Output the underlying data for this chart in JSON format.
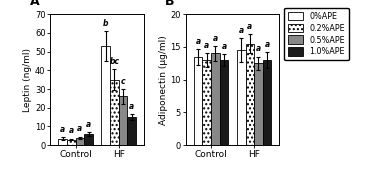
{
  "panel_A": {
    "title": "A",
    "ylabel": "Leptin (ng/ml)",
    "ylim": [
      0,
      70
    ],
    "yticks": [
      0,
      10,
      20,
      30,
      40,
      50,
      60,
      70
    ],
    "groups": [
      "Control",
      "HF"
    ],
    "bars": {
      "0%APE": [
        3.5,
        53.0
      ],
      "0.2%APE": [
        3.0,
        35.0
      ],
      "0.5%APE": [
        4.0,
        26.0
      ],
      "1.0%APE": [
        6.0,
        15.0
      ]
    },
    "errors": {
      "0%APE": [
        0.8,
        8.0
      ],
      "0.2%APE": [
        0.5,
        5.5
      ],
      "0.5%APE": [
        0.6,
        4.0
      ],
      "1.0%APE": [
        1.0,
        1.5
      ]
    },
    "letters": {
      "0%APE": [
        "a",
        "b"
      ],
      "0.2%APE": [
        "a",
        "bc"
      ],
      "0.5%APE": [
        "a",
        "c"
      ],
      "1.0%APE": [
        "a",
        "a"
      ]
    }
  },
  "panel_B": {
    "title": "B",
    "ylabel": "Adiponectin (μg/ml)",
    "ylim": [
      0,
      20
    ],
    "yticks": [
      0,
      5,
      10,
      15,
      20
    ],
    "groups": [
      "Control",
      "HF"
    ],
    "bars": {
      "0%APE": [
        13.5,
        14.5
      ],
      "0.2%APE": [
        13.0,
        15.5
      ],
      "0.5%APE": [
        14.0,
        12.5
      ],
      "1.0%APE": [
        13.0,
        13.0
      ]
    },
    "errors": {
      "0%APE": [
        1.2,
        1.8
      ],
      "0.2%APE": [
        1.0,
        1.5
      ],
      "0.5%APE": [
        1.1,
        1.0
      ],
      "1.0%APE": [
        0.9,
        1.2
      ]
    },
    "letters": {
      "0%APE": [
        "a",
        "a"
      ],
      "0.2%APE": [
        "a",
        "a"
      ],
      "0.5%APE": [
        "a",
        "a"
      ],
      "1.0%APE": [
        "a",
        "a"
      ]
    }
  },
  "bar_colors": [
    "white",
    "white",
    "#888888",
    "#1a1a1a"
  ],
  "bar_hatches": [
    "",
    "....",
    "",
    ""
  ],
  "legend_labels": [
    "0%APE",
    "0.2%APE",
    "0.5%APE",
    "1.0%APE"
  ],
  "bar_width": 0.13,
  "figsize": [
    3.88,
    1.77
  ],
  "dpi": 100
}
